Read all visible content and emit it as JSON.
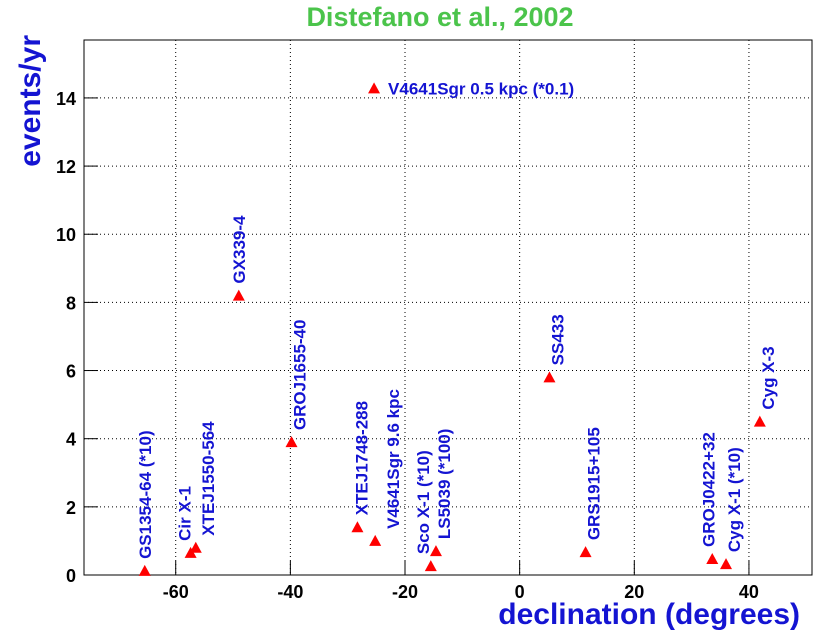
{
  "chart_data": {
    "type": "scatter",
    "title": "Distefano et al., 2002",
    "x_label": "declination (degrees)",
    "y_label": "events/yr",
    "color": "#ff0000",
    "title_color": "#4bc44b",
    "label_color": "#1414d2",
    "grid": true,
    "xlim": [
      -76,
      51
    ],
    "ylim": [
      0,
      15.7
    ],
    "xticks": [
      -60,
      -40,
      -20,
      0,
      20,
      40
    ],
    "yticks": [
      0,
      2,
      4,
      6,
      8,
      10,
      12,
      14
    ],
    "labels": [
      "GS1354-64 (*10)",
      "Cir X-1",
      "XTEJ1550-564",
      "GX339-4",
      "GROJ1655-40",
      "XTEJ1748-288",
      "V4641Sgr 9.6 kpc",
      "Sco X-1 (*10)",
      "LS5039 (*100)",
      "SS433",
      "GRS1915+105",
      "GROJ0422+32",
      "Cyg X-1 (*10)",
      "Cyg X-3",
      "V4641Sgr 0.5 kpc (*0.1)"
    ],
    "x": [
      -65.4,
      -57.4,
      -56.5,
      -49,
      -39.8,
      -28.3,
      -25.2,
      -15.5,
      -14.6,
      5.2,
      11.5,
      33.6,
      36,
      41.9,
      -25.4
    ],
    "values": [
      0.12,
      0.65,
      0.8,
      8.2,
      3.9,
      1.4,
      1.0,
      0.26,
      0.7,
      5.8,
      0.67,
      0.47,
      0.32,
      4.5,
      14.28
    ]
  }
}
